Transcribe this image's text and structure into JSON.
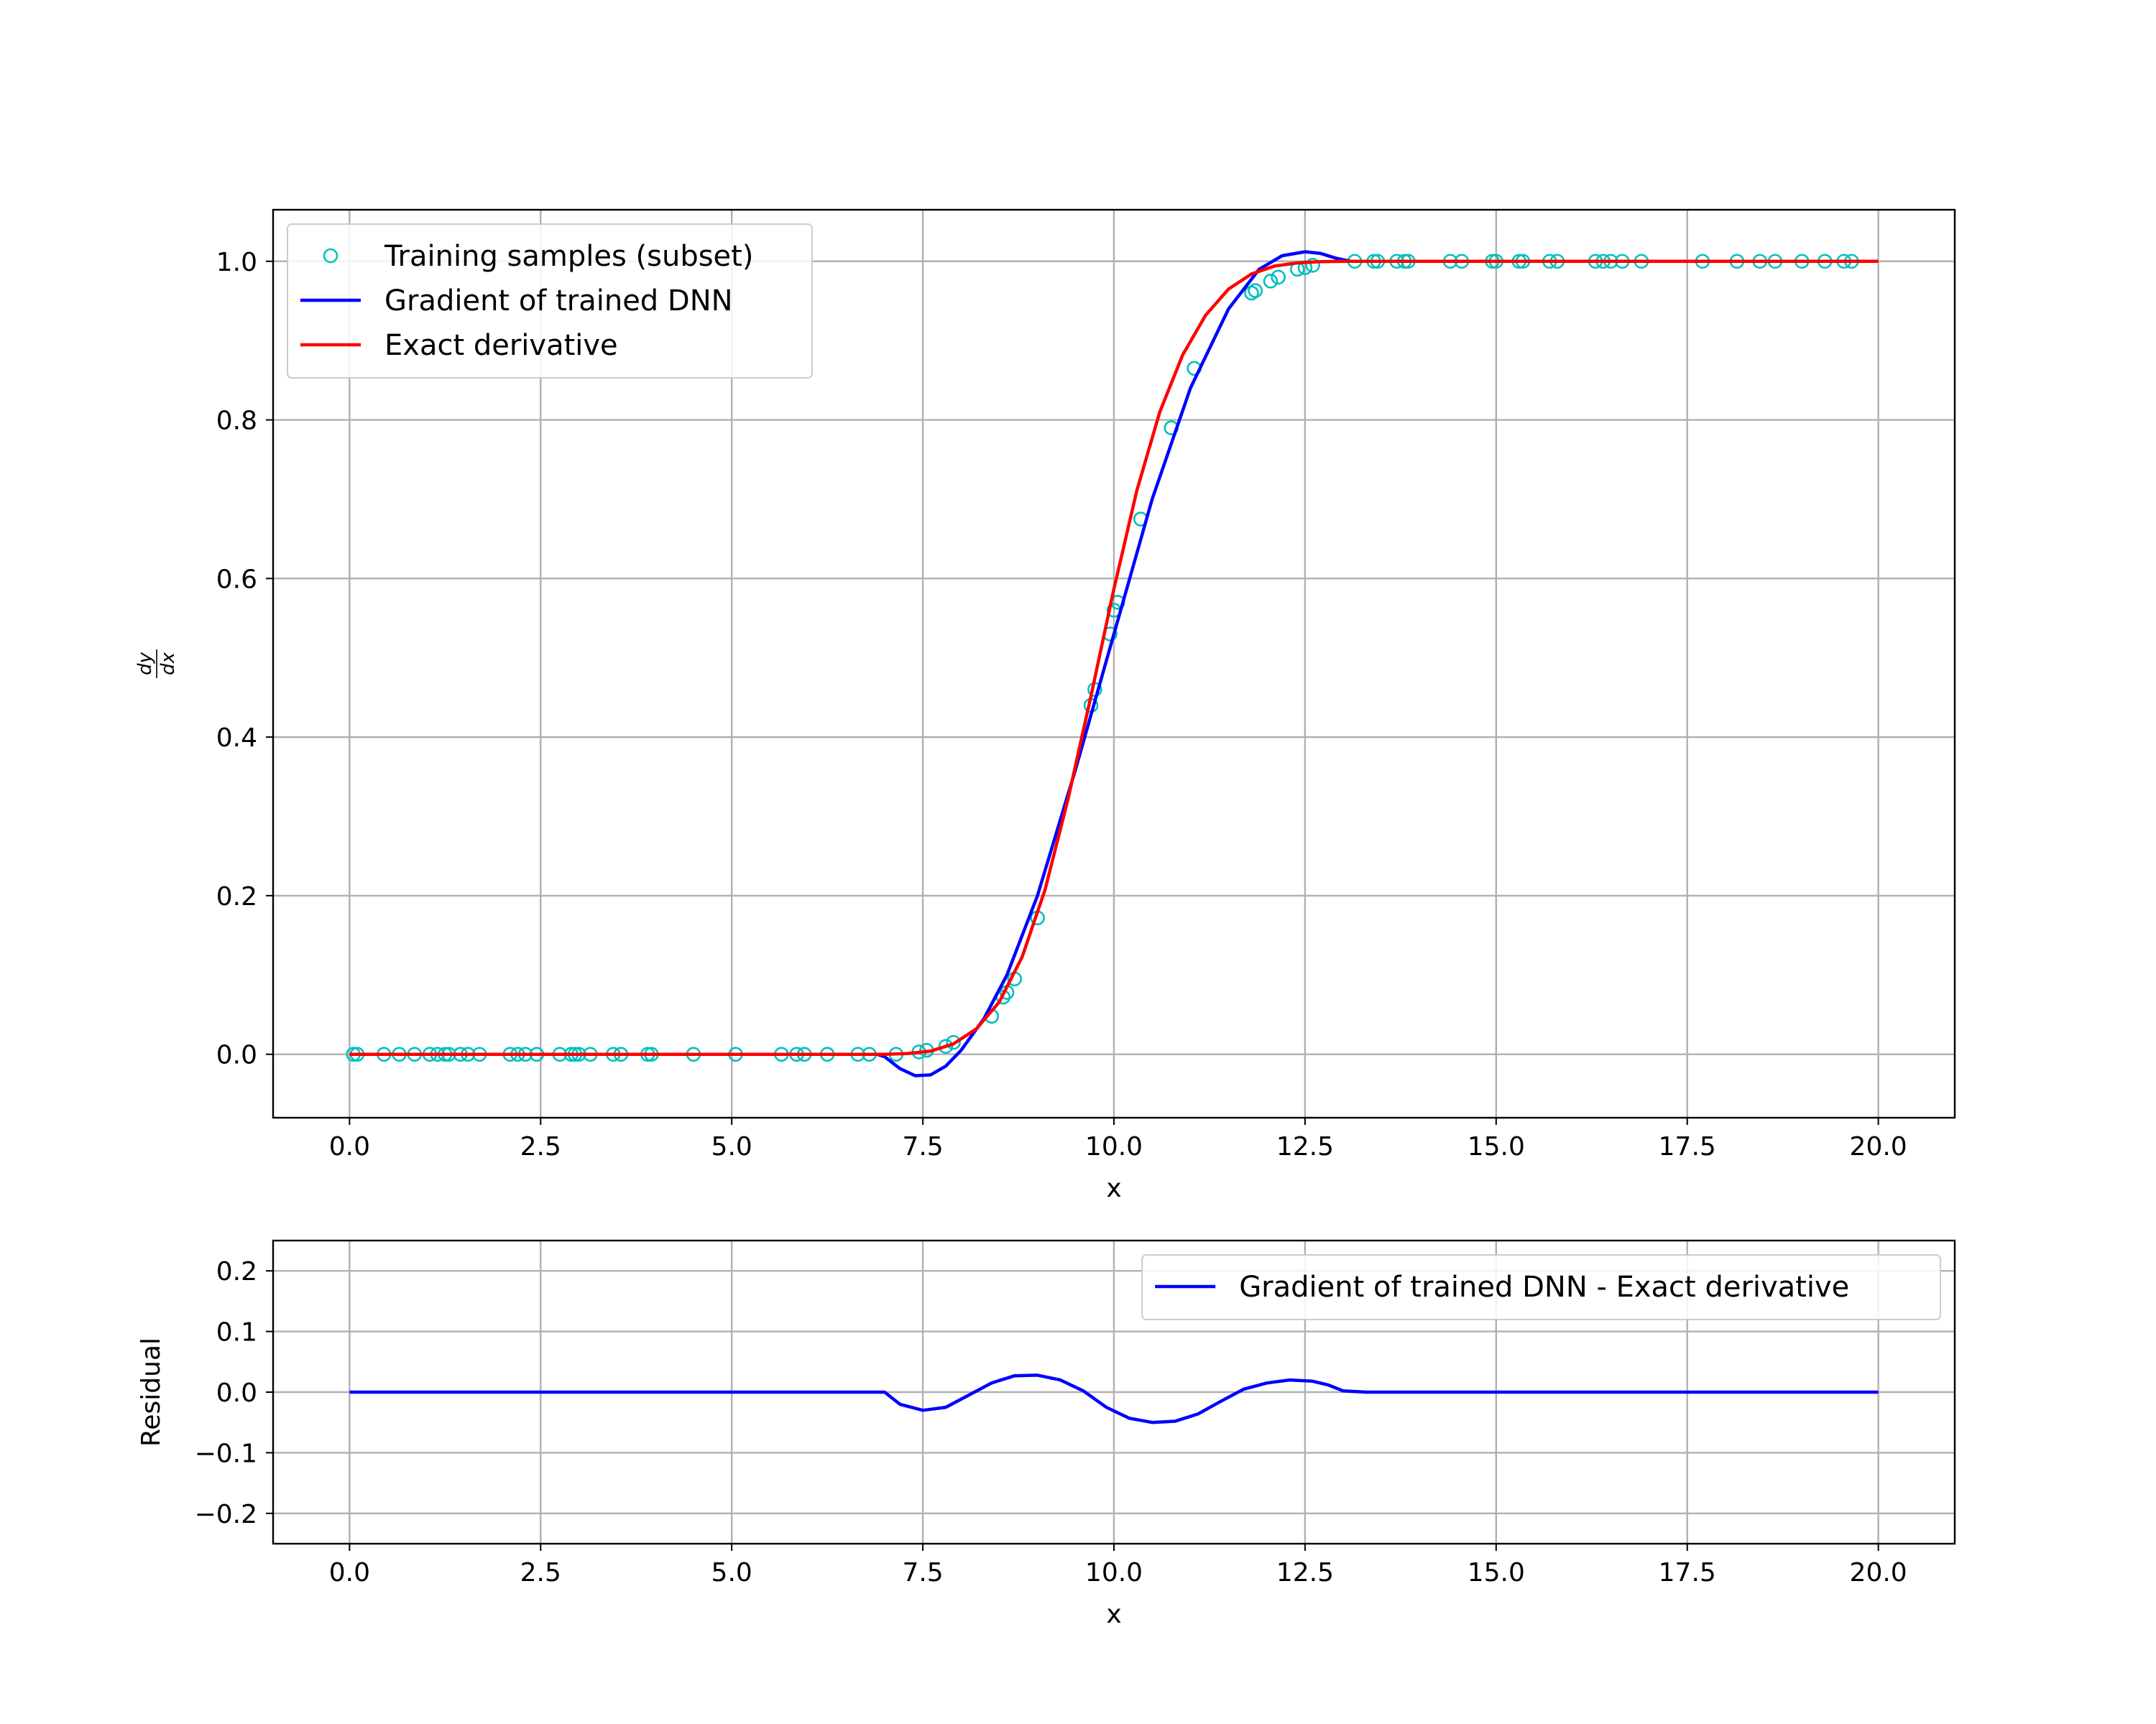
{
  "chart_data": [
    {
      "type": "line",
      "xlabel": "x",
      "ylabel_num": "dy",
      "ylabel_den": "dx",
      "xlim": [
        -1.0,
        21.0
      ],
      "ylim": [
        -0.08,
        1.065
      ],
      "xticks": [
        0.0,
        2.5,
        5.0,
        7.5,
        10.0,
        12.5,
        15.0,
        17.5,
        20.0
      ],
      "xtick_labels": [
        "0.0",
        "2.5",
        "5.0",
        "7.5",
        "10.0",
        "12.5",
        "15.0",
        "17.5",
        "20.0"
      ],
      "yticks": [
        0.0,
        0.2,
        0.4,
        0.6,
        0.8,
        1.0
      ],
      "ytick_labels": [
        "0.0",
        "0.2",
        "0.4",
        "0.6",
        "0.8",
        "1.0"
      ],
      "grid": true,
      "legend_position": "upper-left",
      "series": [
        {
          "name": "Training samples (subset)",
          "style": "markers",
          "color": "#00bfbf",
          "x": [
            0.05,
            0.1,
            0.45,
            0.65,
            0.85,
            1.05,
            1.15,
            1.25,
            1.3,
            1.45,
            1.55,
            1.7,
            2.1,
            2.2,
            2.3,
            2.45,
            2.75,
            2.9,
            2.95,
            3.0,
            3.15,
            3.45,
            3.55,
            3.9,
            3.95,
            4.5,
            5.05,
            5.65,
            5.85,
            5.95,
            6.25,
            6.65,
            6.8,
            7.15,
            7.45,
            7.55,
            7.8,
            7.9,
            8.4,
            8.55,
            8.6,
            8.7,
            9.0,
            9.7,
            9.75,
            9.95,
            10.0,
            10.05,
            10.35,
            10.75,
            11.05,
            11.8,
            11.85,
            12.05,
            12.15,
            12.4,
            12.5,
            12.6,
            13.15,
            13.4,
            13.45,
            13.7,
            13.8,
            13.85,
            14.4,
            14.55,
            14.95,
            15.0,
            15.3,
            15.35,
            15.7,
            15.8,
            16.3,
            16.4,
            16.5,
            16.65,
            16.9,
            17.7,
            18.15,
            18.45,
            18.65,
            19.0,
            19.3,
            19.55,
            19.65
          ],
          "y": [
            0.0,
            0.0,
            0.0,
            0.0,
            0.0,
            0.0,
            0.0,
            0.0,
            0.0,
            0.0,
            0.0,
            0.0,
            0.0,
            0.0,
            0.0,
            0.0,
            0.0,
            0.0,
            0.0,
            0.0,
            0.0,
            0.0,
            0.0,
            0.0,
            0.0,
            0.0,
            0.0,
            0.0,
            0.0,
            0.0,
            0.0,
            0.0,
            0.0,
            0.0,
            0.003,
            0.005,
            0.01,
            0.015,
            0.048,
            0.072,
            0.078,
            0.095,
            0.172,
            0.44,
            0.46,
            0.53,
            0.56,
            0.57,
            0.675,
            0.79,
            0.865,
            0.96,
            0.963,
            0.975,
            0.98,
            0.99,
            0.992,
            0.995,
            1.0,
            1.0,
            1.0,
            1.0,
            1.0,
            1.0,
            1.0,
            1.0,
            1.0,
            1.0,
            1.0,
            1.0,
            1.0,
            1.0,
            1.0,
            1.0,
            1.0,
            1.0,
            1.0,
            1.0,
            1.0,
            1.0,
            1.0,
            1.0,
            1.0,
            1.0,
            1.0
          ]
        },
        {
          "name": "Gradient of trained DNN",
          "style": "line",
          "color": "#0000ff",
          "x": [
            0.0,
            6.9,
            7.0,
            7.2,
            7.4,
            7.6,
            7.8,
            8.0,
            8.3,
            8.6,
            9.0,
            9.5,
            10.0,
            10.5,
            11.0,
            11.5,
            11.9,
            12.2,
            12.5,
            12.7,
            12.9,
            13.1,
            13.3,
            14.0,
            20.0
          ],
          "y": [
            0.0,
            0.0,
            -0.003,
            -0.018,
            -0.027,
            -0.026,
            -0.015,
            0.005,
            0.045,
            0.1,
            0.2,
            0.36,
            0.53,
            0.7,
            0.84,
            0.94,
            0.99,
            1.007,
            1.012,
            1.01,
            1.004,
            1.0,
            1.0,
            1.0,
            1.0
          ]
        },
        {
          "name": "Exact derivative",
          "style": "line",
          "color": "#ff0000",
          "x": [
            0.0,
            7.0,
            7.3,
            7.6,
            7.9,
            8.2,
            8.5,
            8.8,
            9.1,
            9.4,
            9.7,
            10.0,
            10.3,
            10.6,
            10.9,
            11.2,
            11.5,
            11.8,
            12.1,
            12.4,
            12.7,
            13.0,
            13.3,
            20.0
          ],
          "y": [
            0.0,
            0.0,
            0.001,
            0.004,
            0.013,
            0.032,
            0.066,
            0.123,
            0.208,
            0.322,
            0.452,
            0.587,
            0.711,
            0.81,
            0.882,
            0.932,
            0.965,
            0.984,
            0.994,
            0.998,
            0.9995,
            1.0,
            1.0,
            1.0
          ]
        }
      ]
    },
    {
      "type": "line",
      "xlabel": "x",
      "ylabel": "Residual",
      "xlim": [
        -1.0,
        21.0
      ],
      "ylim": [
        -0.25,
        0.25
      ],
      "xticks": [
        0.0,
        2.5,
        5.0,
        7.5,
        10.0,
        12.5,
        15.0,
        17.5,
        20.0
      ],
      "xtick_labels": [
        "0.0",
        "2.5",
        "5.0",
        "7.5",
        "10.0",
        "12.5",
        "15.0",
        "17.5",
        "20.0"
      ],
      "yticks": [
        -0.2,
        -0.1,
        0.0,
        0.1,
        0.2
      ],
      "ytick_labels": [
        "−0.2",
        "−0.1",
        "0.0",
        "0.1",
        "0.2"
      ],
      "grid": true,
      "legend_position": "upper-right",
      "series": [
        {
          "name": "Gradient of trained DNN - Exact derivative",
          "style": "line",
          "color": "#0000ff",
          "x": [
            0.0,
            7.0,
            7.2,
            7.5,
            7.8,
            8.1,
            8.4,
            8.7,
            9.0,
            9.3,
            9.6,
            9.9,
            10.2,
            10.5,
            10.8,
            11.1,
            11.4,
            11.7,
            12.0,
            12.3,
            12.6,
            12.8,
            13.0,
            13.3,
            20.0
          ],
          "y": [
            0.0,
            0.0,
            -0.02,
            -0.03,
            -0.025,
            -0.005,
            0.015,
            0.027,
            0.028,
            0.02,
            0.002,
            -0.025,
            -0.043,
            -0.05,
            -0.048,
            -0.036,
            -0.015,
            0.005,
            0.015,
            0.02,
            0.018,
            0.012,
            0.002,
            0.0,
            0.0
          ]
        }
      ]
    }
  ]
}
